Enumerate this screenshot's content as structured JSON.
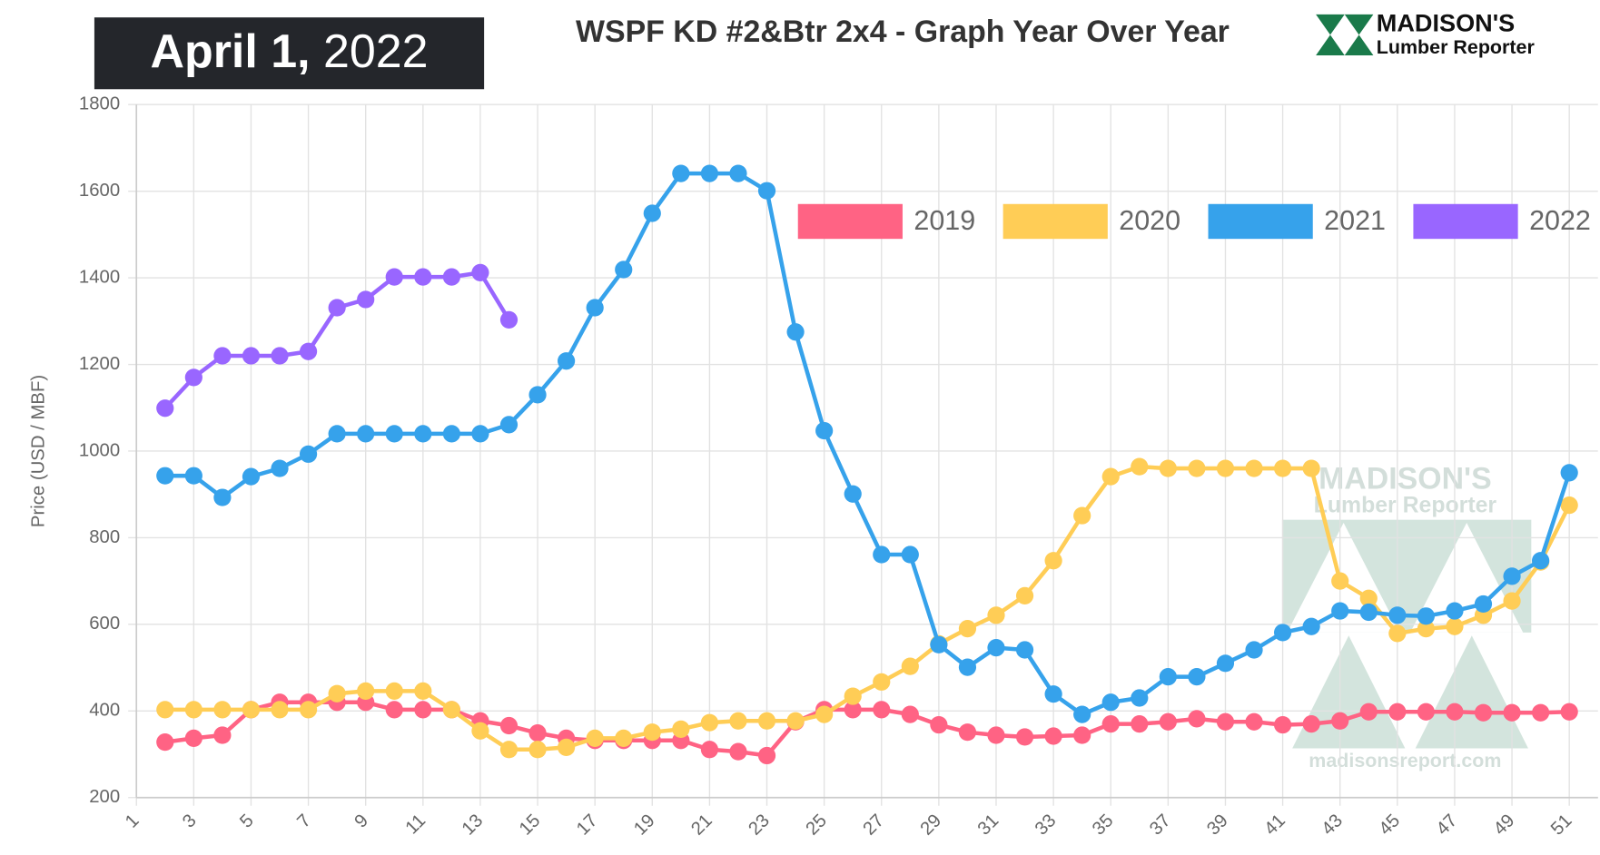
{
  "header": {
    "date": "April 1,",
    "year": "2022",
    "logo_name": "MADISON'S",
    "logo_sub": "Lumber Reporter"
  },
  "watermark": {
    "name": "MADISON'S",
    "sub": "Lumber Reporter",
    "site": "madisonsreport.com"
  },
  "chart_data": {
    "type": "line",
    "title": "WSPF KD #2&Btr 2x4 - Graph Year Over Year",
    "y_label": "Price (USD / MBF)",
    "x": [
      2,
      3,
      4,
      5,
      6,
      7,
      8,
      9,
      10,
      11,
      12,
      13,
      14,
      15,
      16,
      17,
      18,
      19,
      20,
      21,
      22,
      23,
      24,
      25,
      26,
      27,
      28,
      29,
      30,
      31,
      32,
      33,
      34,
      35,
      36,
      37,
      38,
      39,
      40,
      41,
      42,
      43,
      44,
      45,
      46,
      47,
      48,
      49,
      50,
      51
    ],
    "series": [
      {
        "name": "2019",
        "color": "#ff6384",
        "values": [
          328,
          337,
          344,
          403,
          420,
          420,
          420,
          420,
          403,
          403,
          403,
          377,
          366,
          349,
          337,
          332,
          332,
          332,
          332,
          311,
          306,
          297,
          375,
          403,
          403,
          403,
          392,
          368,
          351,
          344,
          340,
          342,
          344,
          370,
          370,
          375,
          382,
          375,
          375,
          368,
          370,
          377,
          398,
          398,
          398,
          398,
          396,
          396,
          396,
          398
        ]
      },
      {
        "name": "2020",
        "color": "#ffcd56",
        "values": [
          403,
          403,
          403,
          403,
          403,
          403,
          440,
          446,
          446,
          446,
          403,
          354,
          311,
          311,
          316,
          337,
          337,
          351,
          358,
          373,
          377,
          377,
          377,
          392,
          434,
          467,
          503,
          555,
          590,
          621,
          666,
          747,
          851,
          941,
          964,
          960,
          960,
          960,
          960,
          960,
          960,
          700,
          660,
          579,
          590,
          595,
          621,
          654,
          744,
          875
        ]
      },
      {
        "name": "2021",
        "color": "#36a2eb",
        "values": [
          943,
          943,
          893,
          941,
          960,
          993,
          1040,
          1040,
          1040,
          1040,
          1040,
          1040,
          1061,
          1130,
          1208,
          1331,
          1419,
          1549,
          1641,
          1641,
          1641,
          1601,
          1275,
          1047,
          901,
          761,
          761,
          553,
          501,
          546,
          541,
          439,
          392,
          420,
          430,
          479,
          479,
          510,
          541,
          581,
          595,
          631,
          628,
          621,
          619,
          631,
          647,
          711,
          747,
          950
        ]
      },
      {
        "name": "2022",
        "color": "#9966ff",
        "values": [
          1099,
          1170,
          1220,
          1220,
          1220,
          1230,
          1331,
          1350,
          1402,
          1402,
          1402,
          1412,
          1303,
          null,
          null,
          null,
          null,
          null,
          null,
          null,
          null,
          null,
          null,
          null,
          null,
          null,
          null,
          null,
          null,
          null,
          null,
          null,
          null,
          null,
          null,
          null,
          null,
          null,
          null,
          null,
          null,
          null,
          null,
          null,
          null,
          null,
          null,
          null,
          null,
          null
        ]
      }
    ],
    "xlim": [
      1,
      52
    ],
    "xticks": [
      1,
      3,
      5,
      7,
      9,
      11,
      13,
      15,
      17,
      19,
      21,
      23,
      25,
      27,
      29,
      31,
      33,
      35,
      37,
      39,
      41,
      43,
      45,
      47,
      49,
      51
    ],
    "ylim": [
      200,
      1800
    ],
    "yticks": [
      200,
      400,
      600,
      800,
      1000,
      1200,
      1400,
      1600,
      1800
    ],
    "grid": true,
    "legend": "top-right"
  }
}
